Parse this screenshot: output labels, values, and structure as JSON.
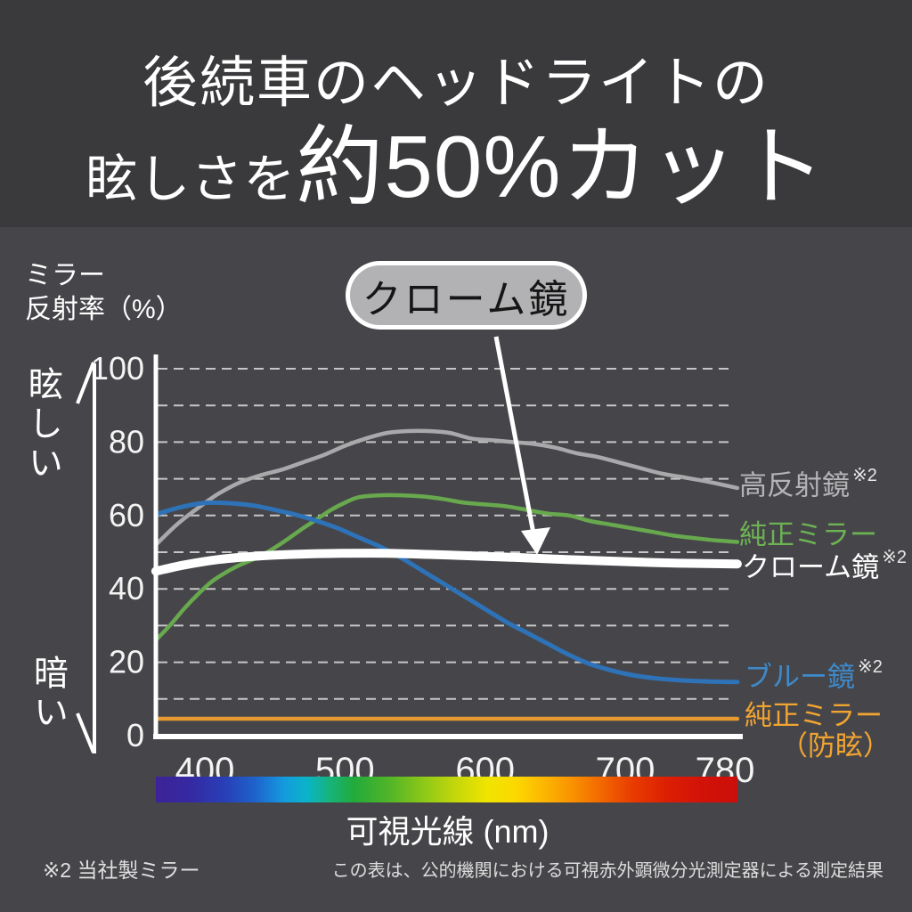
{
  "banner": {
    "title_line1": "後続車のヘッドライトの",
    "title_line2_prefix": "眩しさを",
    "title_line2_emphasis": "約50%カット"
  },
  "y_axis": {
    "title_line1": "ミラー",
    "title_line2": "反射率（%）",
    "top_label": "眩しい",
    "bottom_label": "暗い"
  },
  "callout": {
    "label": "クローム鏡"
  },
  "x_axis": {
    "title": "可視光線 (nm)"
  },
  "footnotes": {
    "left": "※2 当社製ミラー",
    "right": "この表は、公的機関における可視赤外顕微分光測定器による測定結果"
  },
  "colors": {
    "banner_bg": "#3a393b",
    "page_bg": "#46464a",
    "axis": "#ffffff",
    "gridline": "#c6c6c6",
    "callout_bg": "#b2b2b4",
    "spectrum_start": "#3d2398",
    "spectrum_end": "#cc0e0a"
  },
  "chart_data": {
    "type": "line",
    "title": "ミラー反射率スペクトル比較",
    "xlabel": "可視光線 (nm)",
    "ylabel": "ミラー反射率（%）",
    "xlim": [
      365,
      780
    ],
    "ylim": [
      0,
      100
    ],
    "x_ticks": [
      400,
      500,
      600,
      700,
      780
    ],
    "y_ticks": [
      0,
      20,
      40,
      60,
      80,
      100
    ],
    "grid": "horizontal dashed every 10",
    "legend_position": "right of lines",
    "series": [
      {
        "name": "高反射鏡",
        "sup": "※2",
        "color": "#a9a9ab",
        "label_color": "#b4b4b6",
        "width": 4.5,
        "points": [
          [
            365,
            52
          ],
          [
            380,
            57.5
          ],
          [
            395,
            62
          ],
          [
            410,
            66
          ],
          [
            425,
            69
          ],
          [
            440,
            71
          ],
          [
            455,
            72.5
          ],
          [
            470,
            74.5
          ],
          [
            485,
            76.5
          ],
          [
            500,
            79
          ],
          [
            515,
            81
          ],
          [
            530,
            82.5
          ],
          [
            545,
            83
          ],
          [
            560,
            83
          ],
          [
            575,
            82.5
          ],
          [
            590,
            81
          ],
          [
            605,
            80.5
          ],
          [
            620,
            80
          ],
          [
            635,
            79.5
          ],
          [
            650,
            78.5
          ],
          [
            665,
            77
          ],
          [
            680,
            76
          ],
          [
            695,
            74.5
          ],
          [
            710,
            73
          ],
          [
            725,
            71.5
          ],
          [
            740,
            70.5
          ],
          [
            755,
            69.5
          ],
          [
            768,
            68.5
          ],
          [
            780,
            67.5
          ]
        ]
      },
      {
        "name": "純正ミラー",
        "sup": "",
        "color": "#68a94e",
        "label_color": "#6db353",
        "width": 4.5,
        "points": [
          [
            365,
            26
          ],
          [
            375,
            30
          ],
          [
            385,
            34.5
          ],
          [
            395,
            38.5
          ],
          [
            405,
            42
          ],
          [
            415,
            44.5
          ],
          [
            425,
            46.5
          ],
          [
            440,
            49
          ],
          [
            455,
            52.5
          ],
          [
            470,
            56.5
          ],
          [
            480,
            59
          ],
          [
            490,
            61.5
          ],
          [
            500,
            63.5
          ],
          [
            510,
            65
          ],
          [
            525,
            65.5
          ],
          [
            540,
            65.5
          ],
          [
            555,
            65.2
          ],
          [
            570,
            64.5
          ],
          [
            585,
            63.5
          ],
          [
            600,
            63
          ],
          [
            615,
            62.5
          ],
          [
            630,
            61.5
          ],
          [
            645,
            60.5
          ],
          [
            660,
            60
          ],
          [
            675,
            58.5
          ],
          [
            690,
            57.5
          ],
          [
            705,
            56.5
          ],
          [
            720,
            55.5
          ],
          [
            735,
            54.5
          ],
          [
            750,
            53.8
          ],
          [
            765,
            53.2
          ],
          [
            780,
            52.8
          ]
        ]
      },
      {
        "name": "クローム鏡",
        "sup": "※2",
        "color": "#ffffff",
        "label_color": "#ffffff",
        "width": 10,
        "points": [
          [
            365,
            44.8
          ],
          [
            385,
            46.5
          ],
          [
            410,
            48
          ],
          [
            440,
            49
          ],
          [
            470,
            49.5
          ],
          [
            500,
            49.7
          ],
          [
            530,
            49.7
          ],
          [
            560,
            49.4
          ],
          [
            590,
            49
          ],
          [
            620,
            48.6
          ],
          [
            650,
            48.1
          ],
          [
            680,
            47.7
          ],
          [
            710,
            47.3
          ],
          [
            740,
            47
          ],
          [
            780,
            46.8
          ]
        ]
      },
      {
        "name": "ブルー鏡",
        "sup": "※2",
        "color": "#2e72b8",
        "label_color": "#3e8acb",
        "width": 5,
        "points": [
          [
            365,
            60.3
          ],
          [
            380,
            62
          ],
          [
            395,
            63.2
          ],
          [
            405,
            63.5
          ],
          [
            420,
            63.3
          ],
          [
            435,
            62.7
          ],
          [
            450,
            61.5
          ],
          [
            465,
            60.2
          ],
          [
            480,
            58.5
          ],
          [
            495,
            56.5
          ],
          [
            510,
            54
          ],
          [
            525,
            51.5
          ],
          [
            540,
            48.5
          ],
          [
            555,
            45
          ],
          [
            570,
            41.5
          ],
          [
            585,
            38
          ],
          [
            600,
            34.5
          ],
          [
            615,
            31
          ],
          [
            630,
            28
          ],
          [
            645,
            25
          ],
          [
            660,
            22
          ],
          [
            675,
            19.5
          ],
          [
            690,
            17.8
          ],
          [
            705,
            16.5
          ],
          [
            720,
            15.7
          ],
          [
            735,
            15.2
          ],
          [
            750,
            14.9
          ],
          [
            765,
            14.7
          ],
          [
            780,
            14.6
          ]
        ]
      },
      {
        "name": "純正ミラー",
        "name2": "（防眩）",
        "sup": "",
        "color": "#e8992f",
        "label_color": "#f2a431",
        "width": 4.5,
        "points": [
          [
            365,
            4.6
          ],
          [
            430,
            4.6
          ],
          [
            500,
            4.6
          ],
          [
            570,
            4.6
          ],
          [
            640,
            4.6
          ],
          [
            710,
            4.6
          ],
          [
            780,
            4.6
          ]
        ]
      }
    ]
  }
}
